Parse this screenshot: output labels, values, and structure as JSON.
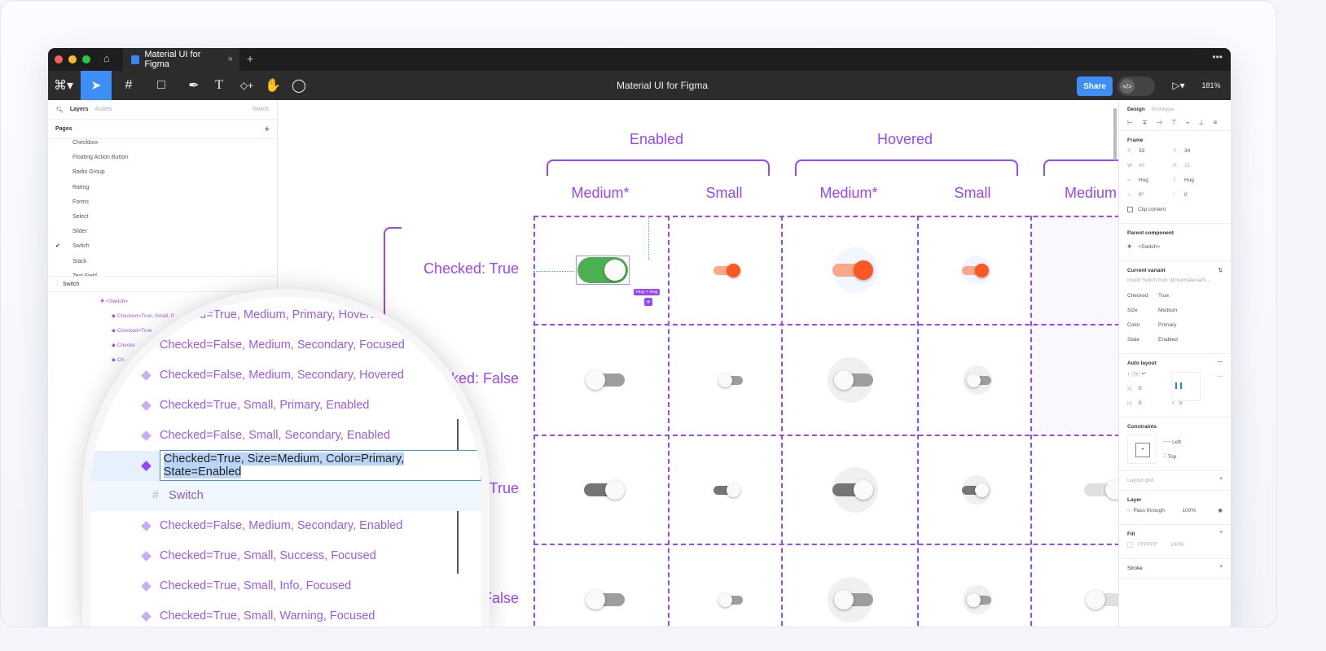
{
  "window": {
    "tab_title": "Material UI for Figma",
    "file_title": "Material UI for Figma",
    "share": "Share",
    "zoom": "181%"
  },
  "left": {
    "tabs": [
      "Layers",
      "Assets"
    ],
    "page_selector": "Switch",
    "pages_label": "Pages",
    "pages": [
      "Checkbox",
      "Floating Action Button",
      "Radio Group",
      "Rating",
      "Forms",
      "Select",
      "Slider",
      "Switch",
      "Stack",
      "Text Field"
    ],
    "current_page": "Switch",
    "frame": "Switch",
    "component": "<Switch>",
    "small_items": [
      "Checked=True, Small, P",
      "Checked=True",
      "Checke",
      "Ch"
    ]
  },
  "magnifier": {
    "items": [
      "Checked=True, Medium, Primary, Hovered",
      "Checked=False, Medium, Secondary, Focused",
      "Checked=False, Medium, Secondary, Hovered",
      "Checked=True, Small, Primary, Enabled",
      "Checked=False, Small, Secondary, Enabled",
      "Checked=True, Size=Medium, Color=Primary, State=Enabled",
      "Switch",
      "Checked=False, Medium, Secondary, Enabled",
      "Checked=True, Small, Success, Focused",
      "Checked=True, Small, Info, Focused",
      "Checked=True, Small, Warning, Focused"
    ]
  },
  "canvas": {
    "groups": [
      "Enabled",
      "Hovered"
    ],
    "columns": [
      "Medium*",
      "Small",
      "Medium*",
      "Small",
      "Medium"
    ],
    "rows": [
      "Checked: True",
      "ked: False",
      "True",
      "ked: False"
    ],
    "hug_label": "Hug × Hug",
    "switches": [
      {
        "row": 0,
        "col": 0,
        "size": "medium",
        "checked": true,
        "color": "#4caf50",
        "halo": false,
        "selected": true
      },
      {
        "row": 0,
        "col": 1,
        "size": "small",
        "checked": true,
        "color": "#ff5722",
        "halo": false
      },
      {
        "row": 0,
        "col": 2,
        "size": "medium",
        "checked": true,
        "color": "#ff5722",
        "halo": true
      },
      {
        "row": 0,
        "col": 3,
        "size": "small",
        "checked": true,
        "color": "#ff5722",
        "halo": true
      },
      {
        "row": 1,
        "col": 0,
        "size": "medium",
        "checked": false,
        "color": "#9e9e9e",
        "halo": false
      },
      {
        "row": 1,
        "col": 1,
        "size": "small",
        "checked": false,
        "color": "#9e9e9e",
        "halo": false
      },
      {
        "row": 1,
        "col": 2,
        "size": "medium",
        "checked": false,
        "color": "#9e9e9e",
        "halo": true
      },
      {
        "row": 1,
        "col": 3,
        "size": "small",
        "checked": false,
        "color": "#9e9e9e",
        "halo": true
      },
      {
        "row": 2,
        "col": 0,
        "size": "medium",
        "checked": true,
        "color": "#757575",
        "halo": false
      },
      {
        "row": 2,
        "col": 1,
        "size": "small",
        "checked": true,
        "color": "#757575",
        "halo": false
      },
      {
        "row": 2,
        "col": 2,
        "size": "medium",
        "checked": true,
        "color": "#757575",
        "halo": true
      },
      {
        "row": 2,
        "col": 3,
        "size": "small",
        "checked": true,
        "color": "#757575",
        "halo": true
      },
      {
        "row": 2,
        "col": 4,
        "size": "medium",
        "checked": true,
        "color": "#e0e0e0",
        "halo": false
      },
      {
        "row": 3,
        "col": 0,
        "size": "medium",
        "checked": false,
        "color": "#9e9e9e",
        "halo": false
      },
      {
        "row": 3,
        "col": 1,
        "size": "small",
        "checked": false,
        "color": "#9e9e9e",
        "halo": false
      },
      {
        "row": 3,
        "col": 2,
        "size": "medium",
        "checked": false,
        "color": "#9e9e9e",
        "halo": true
      },
      {
        "row": 3,
        "col": 3,
        "size": "small",
        "checked": false,
        "color": "#9e9e9e",
        "halo": true
      },
      {
        "row": 3,
        "col": 4,
        "size": "medium",
        "checked": false,
        "color": "#e0e0e0",
        "halo": false
      }
    ]
  },
  "right": {
    "tabs": [
      "Design",
      "Prototype"
    ],
    "frame": {
      "label": "Frame",
      "x_label": "X",
      "x": "33",
      "y_label": "Y",
      "y": "34",
      "w_label": "W",
      "w": "40",
      "h_label": "H",
      "h": "21",
      "hug_w": "Hug",
      "hug_h": "Hug",
      "rotation": "0°",
      "radius": "0",
      "clip": "Clip content"
    },
    "parent": {
      "label": "Parent component",
      "name": "<Switch>"
    },
    "variant": {
      "label": "Current variant",
      "import": "import Switch from '@mui/material/S...",
      "props": [
        [
          "Checked",
          "True"
        ],
        [
          "Size",
          "Medium"
        ],
        [
          "Color",
          "Primary"
        ],
        [
          "State",
          "Enabled"
        ]
      ]
    },
    "auto_layout": {
      "label": "Auto layout",
      "spacing": "0",
      "padding_h": "0",
      "padding_v": "0"
    },
    "constraints": {
      "label": "Constraints",
      "h": "Left",
      "v": "Top"
    },
    "layout_grid": "Layout grid",
    "layer": {
      "label": "Layer",
      "blend": "Pass through",
      "opacity": "100%"
    },
    "fill": {
      "label": "Fill",
      "hex": "FFFFFF",
      "opacity": "100%"
    },
    "stroke": "Stroke"
  },
  "colors": {
    "accent": "#9747ff",
    "figma_blue": "#18a0fb",
    "share": "#3d8ef7"
  }
}
